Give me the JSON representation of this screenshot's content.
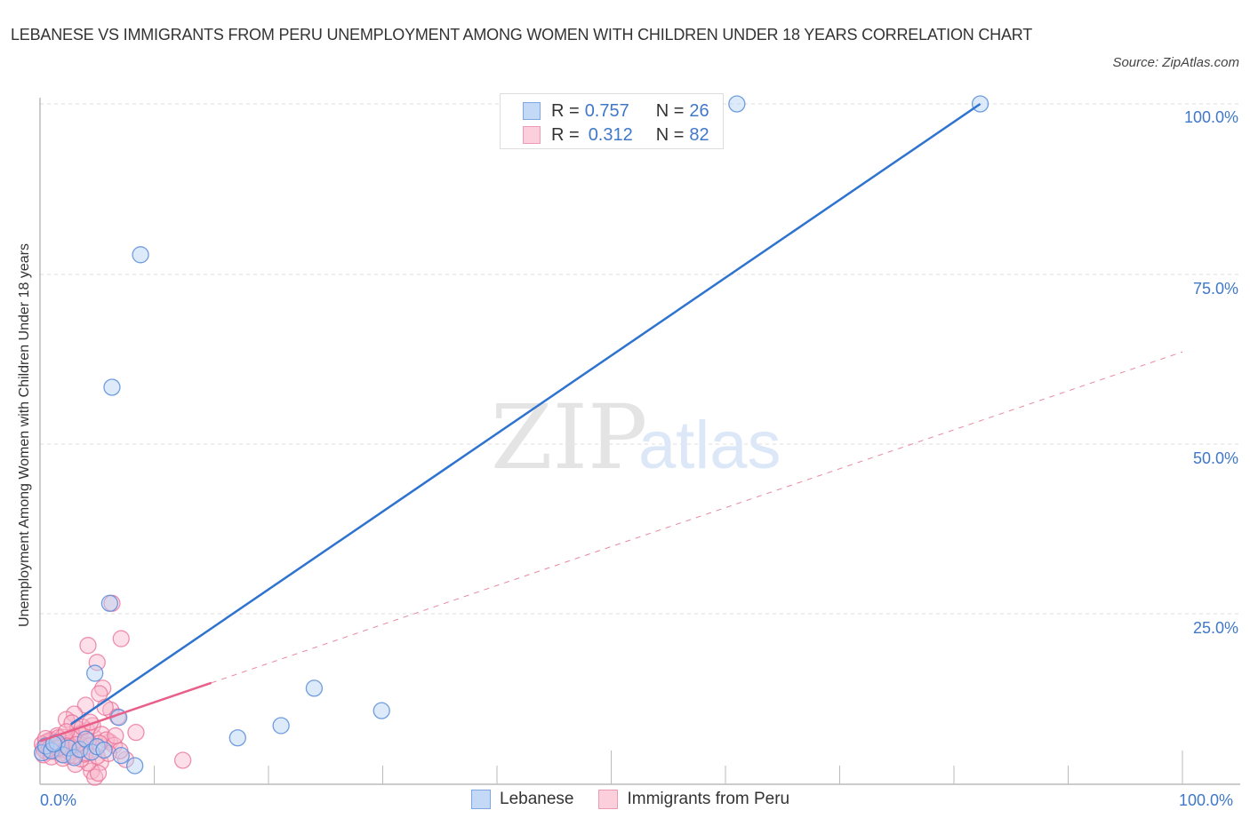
{
  "header": {
    "title": "LEBANESE VS IMMIGRANTS FROM PERU UNEMPLOYMENT AMONG WOMEN WITH CHILDREN UNDER 18 YEARS CORRELATION CHART",
    "source": "Source: ZipAtlas.com"
  },
  "watermark": {
    "zip": "ZIP",
    "atlas": "atlas"
  },
  "legend_top": {
    "rows": [
      {
        "r_label": "R = ",
        "r_value": "0.757",
        "n_label": "N = ",
        "n_value": "26",
        "color": "#a9c8f0"
      },
      {
        "r_label": "R = ",
        "r_value": "0.312",
        "n_label": "N = ",
        "n_value": "82",
        "color": "#f8b9cc"
      }
    ]
  },
  "legend_bottom": {
    "items": [
      {
        "label": "Lebanese",
        "color": "#a9c8f0"
      },
      {
        "label": "Immigrants from Peru",
        "color": "#f8b9cc"
      }
    ]
  },
  "axes": {
    "ylabel": "Unemployment Among Women with Children Under 18 years",
    "yticks": [
      "100.0%",
      "75.0%",
      "50.0%",
      "25.0%"
    ],
    "xticks": [
      "0.0%",
      "100.0%"
    ]
  },
  "chart_data": {
    "type": "scatter",
    "title": "LEBANESE VS IMMIGRANTS FROM PERU UNEMPLOYMENT AMONG WOMEN WITH CHILDREN UNDER 18 YEARS CORRELATION CHART",
    "xlabel": "",
    "ylabel": "Unemployment Among Women with Children Under 18 years",
    "xlim": [
      0,
      100
    ],
    "ylim": [
      0,
      100
    ],
    "grid": true,
    "legend_position": "bottom",
    "series": [
      {
        "name": "Lebanese",
        "color": "#4a86d8",
        "R": 0.757,
        "N": 26,
        "trend": {
          "x": [
            2.7,
            82.3
          ],
          "y": [
            8.7,
            100
          ]
        },
        "points": [
          [
            82.3,
            100
          ],
          [
            61.0,
            100
          ],
          [
            8.8,
            77.8
          ],
          [
            6.3,
            58.3
          ],
          [
            6.1,
            26.5
          ],
          [
            4.8,
            16.2
          ],
          [
            24.0,
            14.0
          ],
          [
            29.9,
            10.7
          ],
          [
            21.1,
            8.5
          ],
          [
            17.3,
            6.7
          ],
          [
            6.9,
            9.7
          ],
          [
            7.1,
            4.1
          ],
          [
            8.3,
            2.6
          ],
          [
            0.2,
            4.5
          ],
          [
            0.5,
            5.5
          ],
          [
            1.0,
            4.8
          ],
          [
            1.5,
            6.0
          ],
          [
            2.0,
            4.2
          ],
          [
            2.5,
            5.2
          ],
          [
            3.0,
            3.8
          ],
          [
            3.5,
            5.0
          ],
          [
            4.0,
            6.5
          ],
          [
            4.5,
            4.6
          ],
          [
            5.0,
            5.4
          ],
          [
            5.6,
            4.9
          ],
          [
            1.2,
            5.8
          ]
        ]
      },
      {
        "name": "Immigrants from Peru",
        "color": "#e8608a",
        "R": 0.312,
        "N": 82,
        "trend": {
          "x": [
            0,
            100
          ],
          "y": [
            6.2,
            63.5
          ],
          "solid_until_x": 15
        },
        "points": [
          [
            6.3,
            26.5
          ],
          [
            4.2,
            20.3
          ],
          [
            7.1,
            21.3
          ],
          [
            5.0,
            17.8
          ],
          [
            5.5,
            14.0
          ],
          [
            5.2,
            13.2
          ],
          [
            4.0,
            11.5
          ],
          [
            3.0,
            10.2
          ],
          [
            2.3,
            9.4
          ],
          [
            2.8,
            8.9
          ],
          [
            3.3,
            8.0
          ],
          [
            6.2,
            10.8
          ],
          [
            6.8,
            9.8
          ],
          [
            8.4,
            7.5
          ],
          [
            6.1,
            6.1
          ],
          [
            12.5,
            3.4
          ],
          [
            5.3,
            3.1
          ],
          [
            7.5,
            3.5
          ],
          [
            4.5,
            1.8
          ],
          [
            4.8,
            0.9
          ],
          [
            5.1,
            1.5
          ],
          [
            4.2,
            3.0
          ],
          [
            3.1,
            2.8
          ],
          [
            3.6,
            3.6
          ],
          [
            2.5,
            4.0
          ],
          [
            1.8,
            4.4
          ],
          [
            1.2,
            5.0
          ],
          [
            0.8,
            5.6
          ],
          [
            0.5,
            6.0
          ],
          [
            0.3,
            5.2
          ],
          [
            0.6,
            4.6
          ],
          [
            1.0,
            6.4
          ],
          [
            1.5,
            7.0
          ],
          [
            2.0,
            6.8
          ],
          [
            2.4,
            5.9
          ],
          [
            2.7,
            5.3
          ],
          [
            3.2,
            6.6
          ],
          [
            3.8,
            6.0
          ],
          [
            4.3,
            5.5
          ],
          [
            4.7,
            6.8
          ],
          [
            0.4,
            4.9
          ],
          [
            0.9,
            5.3
          ],
          [
            1.3,
            5.9
          ],
          [
            1.7,
            5.4
          ],
          [
            2.1,
            5.0
          ],
          [
            2.6,
            4.6
          ],
          [
            3.4,
            4.9
          ],
          [
            3.9,
            4.3
          ],
          [
            0.7,
            6.2
          ],
          [
            1.1,
            4.7
          ],
          [
            1.4,
            6.1
          ],
          [
            1.9,
            5.7
          ],
          [
            2.2,
            6.3
          ],
          [
            2.9,
            6.9
          ],
          [
            3.5,
            7.3
          ],
          [
            4.1,
            7.8
          ],
          [
            4.6,
            8.5
          ],
          [
            5.4,
            7.2
          ],
          [
            5.8,
            6.4
          ],
          [
            6.5,
            5.6
          ],
          [
            7.0,
            4.8
          ],
          [
            0.2,
            5.8
          ],
          [
            0.5,
            6.6
          ],
          [
            1.6,
            6.7
          ],
          [
            2.3,
            7.6
          ],
          [
            3.7,
            8.3
          ],
          [
            4.4,
            9.0
          ],
          [
            5.7,
            11.2
          ],
          [
            0.3,
            4.2
          ],
          [
            1.0,
            3.9
          ],
          [
            2.0,
            3.7
          ],
          [
            3.0,
            4.1
          ],
          [
            4.0,
            4.5
          ],
          [
            5.0,
            4.0
          ],
          [
            6.0,
            4.4
          ],
          [
            0.8,
            5.1
          ],
          [
            1.6,
            5.2
          ],
          [
            2.4,
            5.5
          ],
          [
            3.2,
            5.7
          ],
          [
            4.2,
            6.2
          ],
          [
            5.2,
            5.9
          ],
          [
            6.6,
            7.0
          ]
        ]
      }
    ]
  }
}
